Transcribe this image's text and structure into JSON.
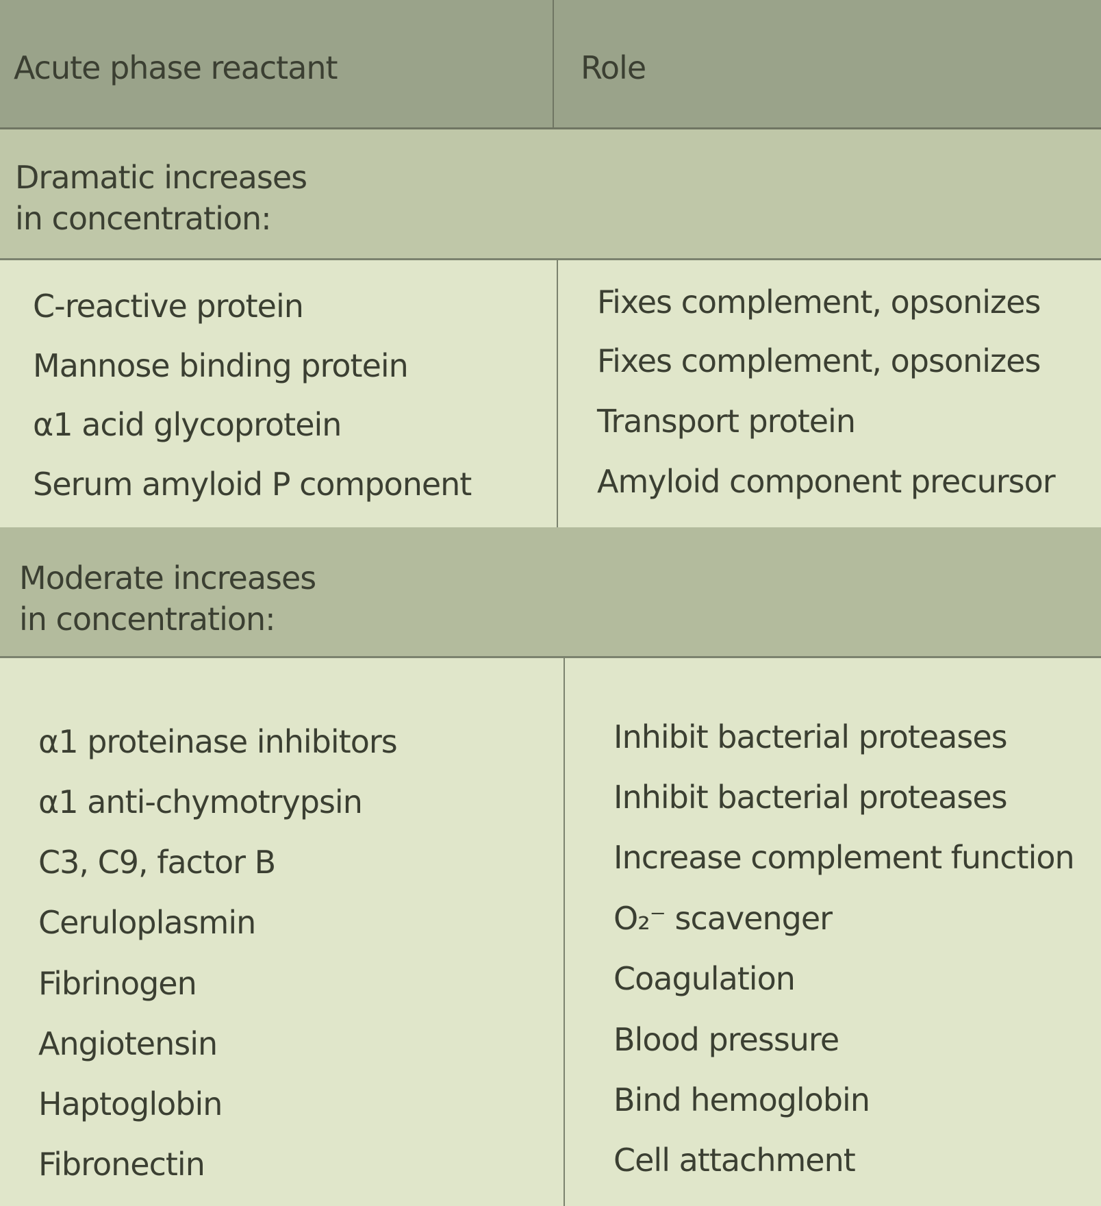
{
  "table": {
    "header": {
      "reactant": "Acute phase reactant",
      "role": "Role"
    },
    "sections": [
      {
        "label": "Dramatic increases\nin concentration:",
        "rows": [
          {
            "reactant": "C-reactive protein",
            "role": "Fixes complement, opsonizes"
          },
          {
            "reactant": "Mannose binding protein",
            "role": "Fixes complement, opsonizes"
          },
          {
            "reactant": "α1 acid glycoprotein",
            "role": "Transport protein"
          },
          {
            "reactant": "Serum amyloid P component",
            "role": "Amyloid component precursor"
          }
        ]
      },
      {
        "label": "Moderate increases\nin concentration:",
        "rows": [
          {
            "reactant": "α1 proteinase inhibitors",
            "role": "Inhibit bacterial proteases"
          },
          {
            "reactant": "α1 anti-chymotrypsin",
            "role": "Inhibit bacterial proteases"
          },
          {
            "reactant": "C3, C9, factor B",
            "role": "Increase complement function"
          },
          {
            "reactant": "Ceruloplasmin",
            "role": "O₂⁻ scavenger"
          },
          {
            "reactant": "Fibrinogen",
            "role": "Coagulation"
          },
          {
            "reactant": "Angiotensin",
            "role": "Blood pressure"
          },
          {
            "reactant": "Haptoglobin",
            "role": "Bind hemoglobin"
          },
          {
            "reactant": "Fibronectin",
            "role": "Cell attachment"
          }
        ]
      }
    ]
  }
}
